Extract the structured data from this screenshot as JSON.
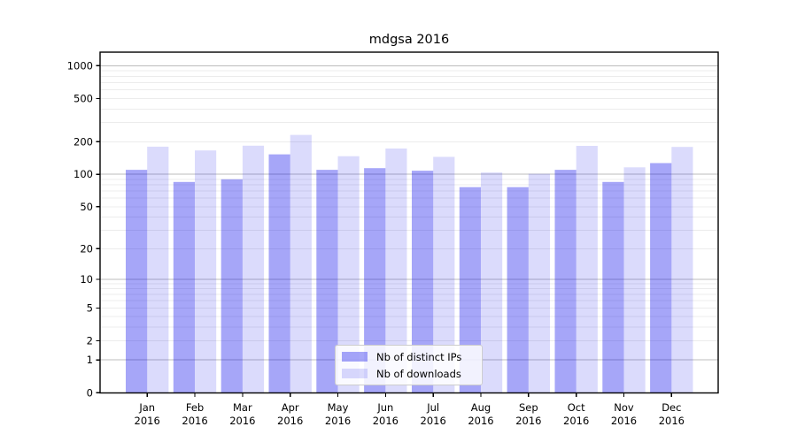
{
  "chart_data": {
    "type": "bar",
    "title": "mdgsa 2016",
    "categories": [
      "Jan 2016",
      "Feb 2016",
      "Mar 2016",
      "Apr 2016",
      "May 2016",
      "Jun 2016",
      "Jul 2016",
      "Aug 2016",
      "Sep 2016",
      "Oct 2016",
      "Nov 2016",
      "Dec 2016"
    ],
    "month_labels": [
      "Jan",
      "Feb",
      "Mar",
      "Apr",
      "May",
      "Jun",
      "Jul",
      "Aug",
      "Sep",
      "Oct",
      "Nov",
      "Dec"
    ],
    "year_label": "2016",
    "series": [
      {
        "name": "Nb of distinct IPs",
        "color": "rgba(0,0,235,0.35)",
        "values": [
          110,
          85,
          90,
          153,
          110,
          114,
          108,
          76,
          76,
          110,
          85,
          127
        ]
      },
      {
        "name": "Nb of downloads",
        "color": "rgba(0,0,235,0.14)",
        "values": [
          180,
          166,
          184,
          231,
          147,
          173,
          145,
          104,
          101,
          183,
          116,
          179
        ]
      }
    ],
    "y_scale": "log1p",
    "y_ticks": [
      0,
      1,
      2,
      5,
      10,
      20,
      50,
      100,
      200,
      500,
      1000
    ],
    "ylim": [
      0,
      1320
    ],
    "grid": "both",
    "legend": {
      "position": "lower-center"
    },
    "colors": {
      "grid_major": "#bdbdbd",
      "grid_minor": "#ececec",
      "spine": "#000000",
      "text": "#000000",
      "background": "#ffffff"
    }
  }
}
